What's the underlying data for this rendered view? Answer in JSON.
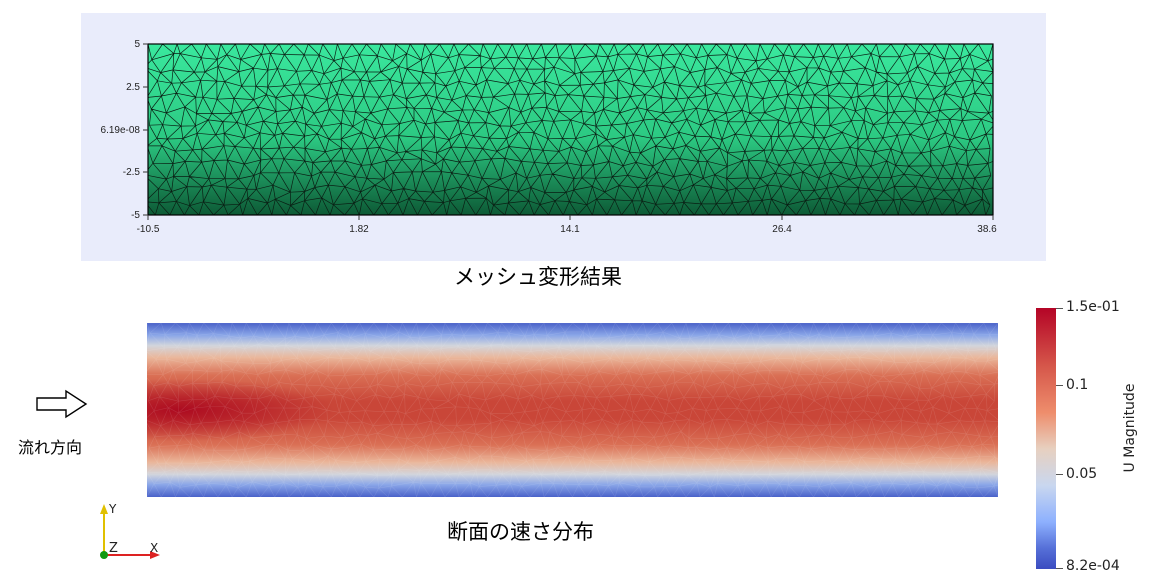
{
  "mesh_plot": {
    "y_ticks": [
      "5",
      "2.5",
      "6.19e-08",
      "-2.5",
      "-5"
    ],
    "x_ticks": [
      "-10.5",
      "1.82",
      "14.1",
      "26.4",
      "38.6"
    ],
    "caption": "メッシュ変形結果",
    "fill_color": "#2fd588"
  },
  "velocity_plot": {
    "caption": "断面の速さ分布",
    "colorbar": {
      "title": "U Magnitude",
      "labels": [
        "1.5e-01",
        "0.1",
        "0.05",
        "8.2e-04"
      ],
      "colors": [
        "#b40426",
        "#e7d0c0",
        "#3b4cc0"
      ]
    }
  },
  "flow_direction": {
    "label": "流れ方向",
    "icon": "right-arrow-icon"
  },
  "axes": {
    "y": "Y",
    "z": "Z",
    "x": "X"
  }
}
